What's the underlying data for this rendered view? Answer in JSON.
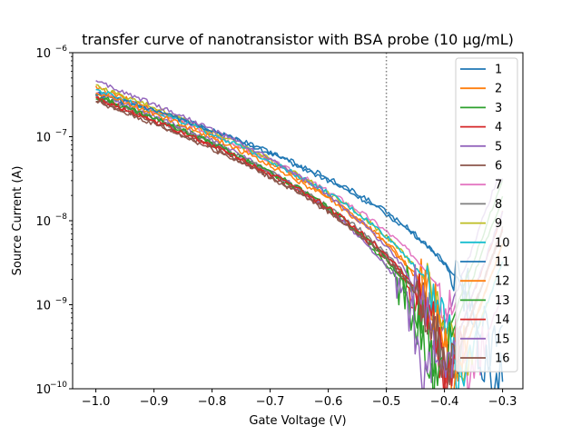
{
  "chart_data": {
    "type": "line",
    "title": "transfer curve of nanotransistor with BSA probe (10 µg/mL)",
    "xlabel": "Gate Voltage (V)",
    "ylabel": "Source Current (A)",
    "xlim": [
      -1.04,
      -0.265
    ],
    "ylim": [
      1e-10,
      1e-06
    ],
    "yscale": "log",
    "x_ticks": [
      -1.0,
      -0.9,
      -0.8,
      -0.7,
      -0.6,
      -0.5,
      -0.4,
      -0.3
    ],
    "x_tick_labels": [
      "−1.0",
      "−0.9",
      "−0.8",
      "−0.7",
      "−0.6",
      "−0.5",
      "−0.4",
      "−0.3"
    ],
    "y_ticks": [
      1e-10,
      1e-09,
      1e-08,
      1e-07,
      1e-06
    ],
    "y_tick_labels": [
      {
        "base": "10",
        "exp": "−10"
      },
      {
        "base": "10",
        "exp": "−9"
      },
      {
        "base": "10",
        "exp": "−8"
      },
      {
        "base": "10",
        "exp": "−7"
      },
      {
        "base": "10",
        "exp": "−6"
      }
    ],
    "grid": false,
    "legend_position": "top-right",
    "reference_line": {
      "x": -0.5,
      "style": "dotted",
      "color": "#808080"
    },
    "series": [
      {
        "name": "1",
        "color": "#1f77b4",
        "start": 3.4e-07,
        "vmin": -0.32,
        "vs": 0.4
      },
      {
        "name": "2",
        "color": "#ff7f0e",
        "start": 3.8e-07,
        "vmin": -0.39,
        "vs": 0.42
      },
      {
        "name": "3",
        "color": "#2ca02c",
        "start": 3.1e-07,
        "vmin": -0.43,
        "vs": 0.41
      },
      {
        "name": "4",
        "color": "#d62728",
        "start": 2.9e-07,
        "vmin": -0.41,
        "vs": 0.43
      },
      {
        "name": "5",
        "color": "#9467bd",
        "start": 3.3e-07,
        "vmin": -0.44,
        "vs": 0.4
      },
      {
        "name": "6",
        "color": "#8c564b",
        "start": 2.7e-07,
        "vmin": -0.4,
        "vs": 0.44
      },
      {
        "name": "7",
        "color": "#e377c2",
        "start": 3.5e-07,
        "vmin": -0.36,
        "vs": 0.42
      },
      {
        "name": "8",
        "color": "#7f7f7f",
        "start": 3e-07,
        "vmin": -0.4,
        "vs": 0.43
      },
      {
        "name": "9",
        "color": "#bcbd22",
        "start": 4e-07,
        "vmin": -0.38,
        "vs": 0.42
      },
      {
        "name": "10",
        "color": "#17becf",
        "start": 3.6e-07,
        "vmin": -0.38,
        "vs": 0.41
      },
      {
        "name": "11",
        "color": "#1f77b4",
        "start": 3.2e-07,
        "vmin": -0.34,
        "vs": 0.36
      },
      {
        "name": "12",
        "color": "#ff7f0e",
        "start": 3.4e-07,
        "vmin": -0.39,
        "vs": 0.42
      },
      {
        "name": "13",
        "color": "#2ca02c",
        "start": 3e-07,
        "vmin": -0.42,
        "vs": 0.41
      },
      {
        "name": "14",
        "color": "#d62728",
        "start": 2.8e-07,
        "vmin": -0.4,
        "vs": 0.43
      },
      {
        "name": "15",
        "color": "#9467bd",
        "start": 4.5e-07,
        "vmin": -0.41,
        "vs": 0.41
      },
      {
        "name": "16",
        "color": "#8c564b",
        "start": 2.6e-07,
        "vmin": -0.4,
        "vs": 0.44
      }
    ]
  }
}
